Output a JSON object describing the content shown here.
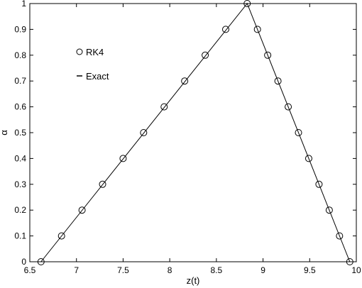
{
  "chart_data": {
    "type": "line",
    "xlabel": "z(t)",
    "ylabel": "α",
    "xlim": [
      6.5,
      10
    ],
    "ylim": [
      0,
      1
    ],
    "xticks": [
      "6.5",
      "7",
      "7.5",
      "8",
      "8.5",
      "9",
      "9.5",
      "10"
    ],
    "yticks": [
      "0",
      "0.1",
      "0.2",
      "0.3",
      "0.4",
      "0.5",
      "0.6",
      "0.7",
      "0.8",
      "0.9",
      "1"
    ],
    "legend_position": "top-left",
    "series": [
      {
        "name": "RK4",
        "marker": "circle",
        "points": [
          [
            6.62,
            0.0
          ],
          [
            6.84,
            0.1
          ],
          [
            7.06,
            0.2
          ],
          [
            7.28,
            0.3
          ],
          [
            7.5,
            0.4
          ],
          [
            7.72,
            0.5
          ],
          [
            7.94,
            0.6
          ],
          [
            8.16,
            0.7
          ],
          [
            8.38,
            0.8
          ],
          [
            8.6,
            0.9
          ],
          [
            8.83,
            1.0
          ],
          [
            8.94,
            0.9
          ],
          [
            9.05,
            0.8
          ],
          [
            9.16,
            0.7
          ],
          [
            9.27,
            0.6
          ],
          [
            9.38,
            0.5
          ],
          [
            9.49,
            0.4
          ],
          [
            9.6,
            0.3
          ],
          [
            9.71,
            0.2
          ],
          [
            9.82,
            0.1
          ],
          [
            9.93,
            0.0
          ]
        ]
      },
      {
        "name": "Exact",
        "marker": "line",
        "points": [
          [
            6.62,
            0.0
          ],
          [
            8.83,
            1.0
          ],
          [
            9.93,
            0.0
          ]
        ]
      }
    ]
  }
}
